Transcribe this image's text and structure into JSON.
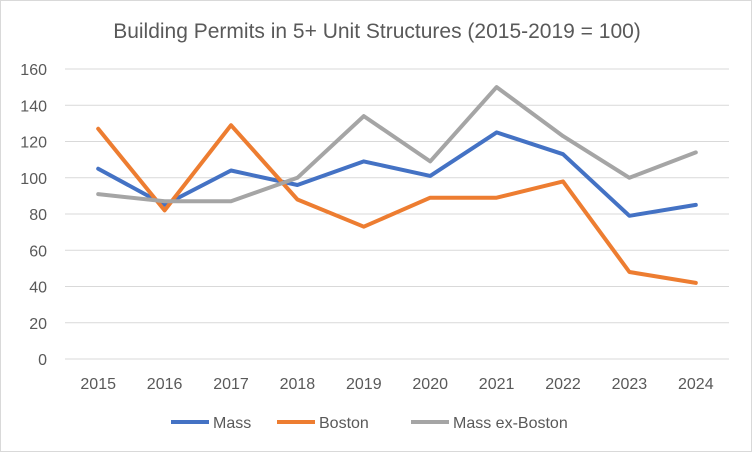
{
  "chart_data": {
    "type": "line",
    "title": "Building Permits in 5+ Unit Structures (2015-2019 = 100)",
    "xlabel": "",
    "ylabel": "",
    "categories": [
      "2015",
      "2016",
      "2017",
      "2018",
      "2019",
      "2020",
      "2021",
      "2022",
      "2023",
      "2024"
    ],
    "ylim": [
      0,
      160
    ],
    "yticks": [
      0,
      20,
      40,
      60,
      80,
      100,
      120,
      140,
      160
    ],
    "grid": "horizontal",
    "legend_position": "bottom",
    "series": [
      {
        "name": "Mass",
        "color": "#4472c4",
        "values": [
          105,
          85,
          104,
          96,
          109,
          101,
          125,
          113,
          79,
          85
        ]
      },
      {
        "name": "Boston",
        "color": "#ed7d31",
        "values": [
          127,
          82,
          129,
          88,
          73,
          89,
          89,
          98,
          48,
          42
        ]
      },
      {
        "name": "Mass ex-Boston",
        "color": "#a5a5a5",
        "values": [
          91,
          87,
          87,
          100,
          134,
          109,
          150,
          123,
          100,
          114
        ]
      }
    ]
  }
}
